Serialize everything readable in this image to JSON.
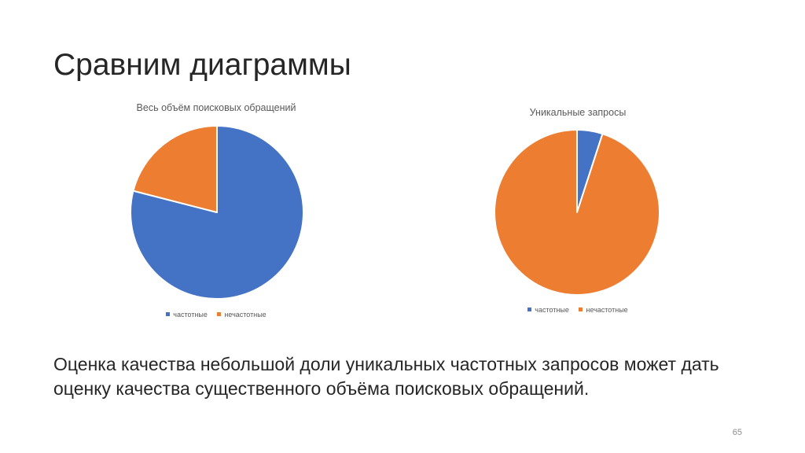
{
  "slide": {
    "title": "Сравним диаграммы",
    "body_text": "Оценка качества небольшой доли уникальных частотных запросов может дать оценку качества существенного объёма поисковых обращений.",
    "page_number": "65"
  },
  "colors": {
    "series_blue": "#4472C4",
    "series_orange": "#ED7D31"
  },
  "chart_data": [
    {
      "type": "pie",
      "title": "Весь объём поисковых обращений",
      "categories": [
        "частотные",
        "нечастотные"
      ],
      "values": [
        79,
        21
      ],
      "colors": [
        "#4472C4",
        "#ED7D31"
      ],
      "legend_position": "bottom"
    },
    {
      "type": "pie",
      "title": "Уникальные запросы",
      "categories": [
        "частотные",
        "нечастотные"
      ],
      "values": [
        5,
        95
      ],
      "colors": [
        "#4472C4",
        "#ED7D31"
      ],
      "legend_position": "bottom"
    }
  ]
}
